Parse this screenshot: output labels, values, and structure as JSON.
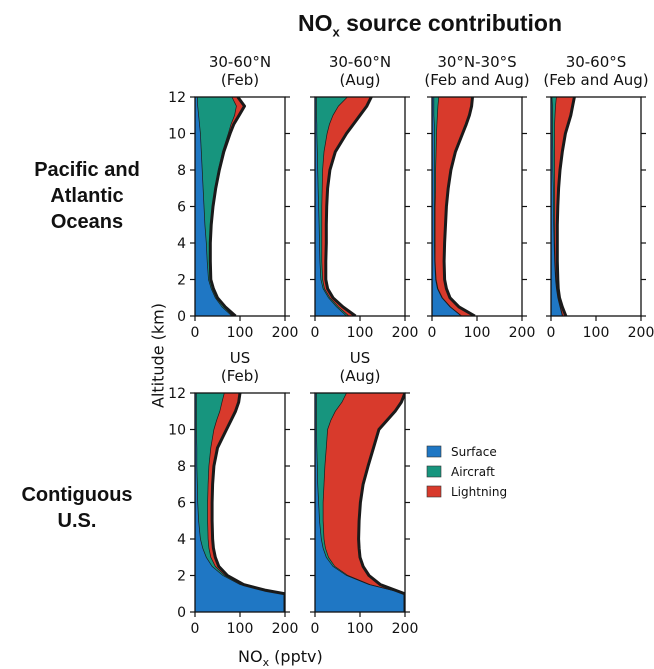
{
  "figure": {
    "title_main": "NO",
    "title_sub": "x",
    "title_rest": " source contribution",
    "ylabel": "Altitude (km)",
    "xlabel_main": "NO",
    "xlabel_sub": "x",
    "xlabel_rest": " (pptv)",
    "row_labels": [
      "Pacific and\nAtlantic\nOceans",
      "Contiguous\nU.S."
    ]
  },
  "colors": {
    "Surface": "#1f77c4",
    "Aircraft": "#17957e",
    "Lightning": "#d83a2c",
    "outline": "#1a1a1a"
  },
  "chart_data": [
    {
      "type": "area",
      "title": [
        "30-60°N",
        "(Feb)"
      ],
      "xlim": [
        0,
        200
      ],
      "ylim": [
        0,
        12
      ],
      "xticks": [
        0,
        100,
        200
      ],
      "yticks": [
        0,
        2,
        4,
        6,
        8,
        10,
        12
      ],
      "altitude": [
        0,
        0.5,
        1,
        1.5,
        2,
        3,
        4,
        5,
        6,
        7,
        8,
        9,
        10,
        10.5,
        11,
        11.5,
        12
      ],
      "series": [
        {
          "name": "Surface",
          "cumulative": [
            82,
            60,
            45,
            36,
            30,
            27,
            25,
            22,
            20,
            18,
            16,
            14,
            12,
            10,
            8,
            6,
            5
          ]
        },
        {
          "name": "Aircraft",
          "cumulative": [
            84,
            64,
            49,
            40,
            34,
            33,
            33,
            35,
            39,
            44,
            52,
            61,
            74,
            80,
            88,
            92,
            82
          ]
        },
        {
          "name": "Lightning",
          "cumulative": [
            90,
            67,
            50,
            41,
            35,
            34,
            34,
            36,
            40,
            46,
            54,
            64,
            78,
            86,
            98,
            110,
            95
          ]
        }
      ]
    },
    {
      "type": "area",
      "title": [
        "30-60°N",
        "(Aug)"
      ],
      "xlim": [
        0,
        200
      ],
      "ylim": [
        0,
        12
      ],
      "xticks": [
        0,
        100,
        200
      ],
      "yticks": [
        0,
        2,
        4,
        6,
        8,
        10,
        12
      ],
      "altitude": [
        0,
        0.5,
        1,
        1.5,
        2,
        3,
        4,
        5,
        6,
        7,
        8,
        9,
        10,
        10.5,
        11,
        11.5,
        12
      ],
      "series": [
        {
          "name": "Surface",
          "cumulative": [
            70,
            48,
            30,
            18,
            13,
            11,
            10,
            9,
            8,
            7,
            6,
            5,
            4,
            4,
            3,
            3,
            3
          ]
        },
        {
          "name": "Aircraft",
          "cumulative": [
            75,
            52,
            33,
            21,
            17,
            15,
            15,
            15,
            15,
            16,
            17,
            20,
            27,
            32,
            40,
            52,
            72
          ]
        },
        {
          "name": "Lightning",
          "cumulative": [
            90,
            62,
            40,
            28,
            24,
            24,
            25,
            25,
            26,
            28,
            33,
            45,
            70,
            85,
            100,
            115,
            125
          ]
        }
      ]
    },
    {
      "type": "area",
      "title": [
        "30°N-30°S",
        "(Feb and Aug)"
      ],
      "xlim": [
        0,
        200
      ],
      "ylim": [
        0,
        12
      ],
      "xticks": [
        0,
        100,
        200
      ],
      "yticks": [
        0,
        2,
        4,
        6,
        8,
        10,
        12
      ],
      "altitude": [
        0,
        0.5,
        1,
        1.5,
        2,
        3,
        4,
        5,
        6,
        7,
        8,
        9,
        10,
        10.5,
        11,
        11.5,
        12
      ],
      "series": [
        {
          "name": "Surface",
          "cumulative": [
            65,
            40,
            22,
            12,
            8,
            6,
            5,
            5,
            5,
            5,
            5,
            5,
            5,
            5,
            4,
            4,
            4
          ]
        },
        {
          "name": "Aircraft",
          "cumulative": [
            66,
            41,
            23,
            13,
            9,
            7,
            7,
            7,
            7,
            8,
            8,
            9,
            10,
            11,
            12,
            13,
            15
          ]
        },
        {
          "name": "Lightning",
          "cumulative": [
            95,
            60,
            40,
            32,
            28,
            27,
            28,
            30,
            32,
            36,
            42,
            52,
            68,
            76,
            83,
            88,
            90
          ]
        }
      ]
    },
    {
      "type": "area",
      "title": [
        "30-60°S",
        "(Feb and Aug)"
      ],
      "xlim": [
        0,
        200
      ],
      "ylim": [
        0,
        12
      ],
      "xticks": [
        0,
        100,
        200
      ],
      "yticks": [
        0,
        2,
        4,
        6,
        8,
        10,
        12
      ],
      "altitude": [
        0,
        0.5,
        1,
        1.5,
        2,
        3,
        4,
        5,
        6,
        7,
        8,
        9,
        10,
        10.5,
        11,
        11.5,
        12
      ],
      "series": [
        {
          "name": "Surface",
          "cumulative": [
            25,
            20,
            15,
            12,
            10,
            8,
            7,
            6,
            5,
            5,
            4,
            4,
            3,
            3,
            3,
            3,
            2
          ]
        },
        {
          "name": "Aircraft",
          "cumulative": [
            26,
            21,
            16,
            13,
            11,
            9,
            8,
            8,
            8,
            8,
            8,
            8,
            8,
            8,
            9,
            10,
            12
          ]
        },
        {
          "name": "Lightning",
          "cumulative": [
            33,
            25,
            19,
            16,
            15,
            14,
            14,
            14,
            15,
            17,
            20,
            25,
            32,
            38,
            44,
            48,
            52
          ]
        }
      ]
    },
    {
      "type": "area",
      "title": [
        "US",
        "(Feb)"
      ],
      "xlim": [
        0,
        200
      ],
      "ylim": [
        0,
        12
      ],
      "xticks": [
        0,
        100,
        200
      ],
      "yticks": [
        0,
        2,
        4,
        6,
        8,
        10,
        12
      ],
      "altitude": [
        0,
        1,
        1.2,
        1.5,
        2,
        2.5,
        3,
        3.5,
        4,
        5,
        6,
        7,
        8,
        9,
        10,
        10.5,
        11,
        11.5,
        12
      ],
      "series": [
        {
          "name": "Surface",
          "cumulative": [
            200,
            200,
            150,
            100,
            62,
            38,
            25,
            17,
            12,
            8,
            6,
            5,
            4,
            4,
            3,
            3,
            3,
            3,
            3
          ]
        },
        {
          "name": "Aircraft",
          "cumulative": [
            200,
            200,
            152,
            103,
            66,
            45,
            35,
            31,
            29,
            28,
            28,
            29,
            31,
            35,
            42,
            48,
            55,
            60,
            65
          ]
        },
        {
          "name": "Lightning",
          "cumulative": [
            200,
            200,
            155,
            108,
            72,
            53,
            45,
            41,
            39,
            38,
            38,
            39,
            42,
            50,
            70,
            80,
            90,
            97,
            100
          ]
        }
      ]
    },
    {
      "type": "area",
      "title": [
        "US",
        "(Aug)"
      ],
      "xlim": [
        0,
        200
      ],
      "ylim": [
        0,
        12
      ],
      "xticks": [
        0,
        100,
        200
      ],
      "yticks": [
        0,
        2,
        4,
        6,
        8,
        10,
        12
      ],
      "altitude": [
        0,
        1,
        1.2,
        1.5,
        2,
        2.5,
        3,
        3.5,
        4,
        5,
        6,
        7,
        8,
        9,
        10,
        10.5,
        11,
        11.5,
        12
      ],
      "series": [
        {
          "name": "Surface",
          "cumulative": [
            200,
            200,
            170,
            120,
            70,
            40,
            25,
            18,
            14,
            10,
            8,
            6,
            5,
            4,
            3,
            3,
            3,
            3,
            3
          ]
        },
        {
          "name": "Aircraft",
          "cumulative": [
            200,
            200,
            171,
            122,
            73,
            44,
            30,
            23,
            20,
            18,
            18,
            20,
            22,
            25,
            28,
            35,
            45,
            60,
            70
          ]
        },
        {
          "name": "Lightning",
          "cumulative": [
            200,
            200,
            178,
            145,
            120,
            107,
            100,
            98,
            97,
            98,
            101,
            107,
            118,
            130,
            142,
            160,
            178,
            192,
            200
          ]
        }
      ]
    }
  ],
  "legend": {
    "placement": "right",
    "entries": [
      "Surface",
      "Aircraft",
      "Lightning"
    ]
  }
}
